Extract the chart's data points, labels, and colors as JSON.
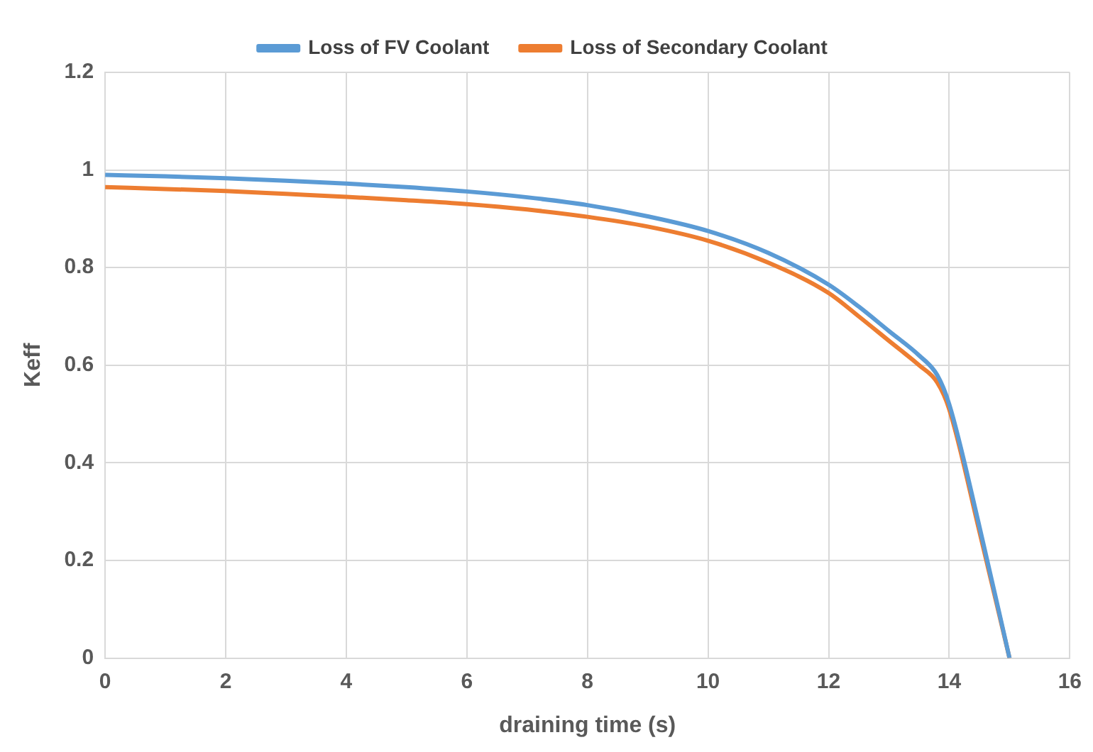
{
  "chart_data": {
    "type": "line",
    "xlabel": "draining time (s)",
    "ylabel": "Keff",
    "series": [
      {
        "name": "Loss of FV Coolant",
        "color": "#5b9bd5",
        "x": [
          0,
          1,
          2,
          3,
          4,
          5,
          6,
          7,
          8,
          9,
          10,
          11,
          12,
          12.5,
          13,
          13.5,
          13.8,
          14,
          14.5,
          15
        ],
        "values": [
          0.99,
          0.987,
          0.983,
          0.978,
          0.972,
          0.965,
          0.956,
          0.944,
          0.928,
          0.905,
          0.875,
          0.83,
          0.765,
          0.72,
          0.67,
          0.62,
          0.58,
          0.52,
          0.27,
          0
        ]
      },
      {
        "name": "Loss of Secondary Coolant",
        "color": "#ed7d31",
        "x": [
          0,
          1,
          2,
          3,
          4,
          5,
          6,
          7,
          8,
          9,
          10,
          11,
          12,
          12.5,
          13,
          13.5,
          13.8,
          14,
          14.5,
          15
        ],
        "values": [
          0.965,
          0.961,
          0.957,
          0.951,
          0.945,
          0.938,
          0.93,
          0.919,
          0.904,
          0.884,
          0.855,
          0.81,
          0.748,
          0.7,
          0.65,
          0.6,
          0.565,
          0.51,
          0.26,
          0
        ]
      }
    ],
    "xlim": [
      0,
      16
    ],
    "xticks": [
      0,
      2,
      4,
      6,
      8,
      10,
      12,
      14,
      16
    ],
    "ylim": [
      0,
      1.2
    ],
    "yticks": [
      0,
      0.2,
      0.4,
      0.6,
      0.8,
      1,
      1.2
    ],
    "grid": true,
    "legend": "top",
    "marker": "none",
    "line_style": "solid"
  }
}
